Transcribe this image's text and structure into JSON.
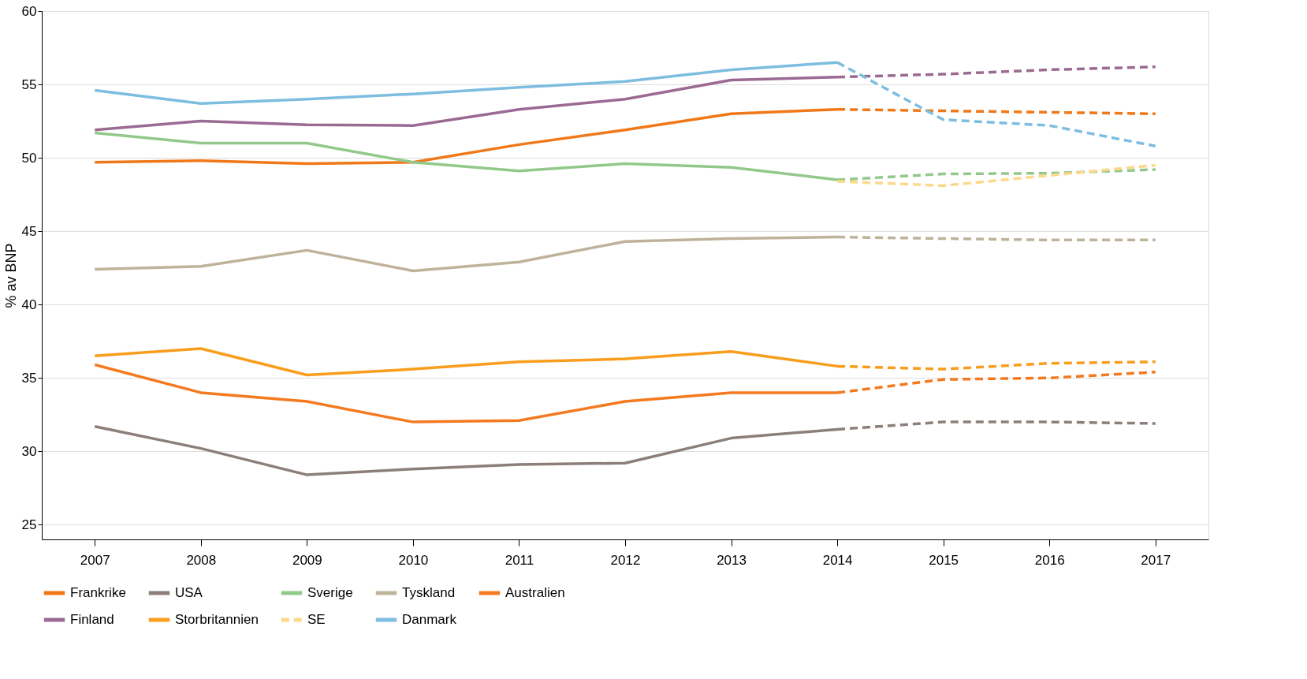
{
  "chart_data": {
    "type": "line",
    "ylabel": "% av BNP",
    "xlim": [
      2006.5,
      2017.5
    ],
    "xticks": [
      2007,
      2008,
      2009,
      2010,
      2011,
      2012,
      2013,
      2014,
      2015,
      2016,
      2017
    ],
    "ylim": [
      24,
      60
    ],
    "yticks": [
      25,
      30,
      35,
      40,
      45,
      50,
      55,
      60
    ],
    "grid": "y",
    "legend": "bottom",
    "series": [
      {
        "name": "Frankrike",
        "color": "#f07818",
        "line_style": "solid",
        "x": [
          2007,
          2008,
          2009,
          2010,
          2011,
          2012,
          2013,
          2014
        ],
        "values": [
          49.7,
          49.8,
          49.6,
          49.7,
          50.9,
          51.9,
          53.0,
          53.3
        ]
      },
      {
        "color": "#f07818",
        "line_style": "dashed",
        "x": [
          2014,
          2015,
          2016,
          2017
        ],
        "values": [
          53.3,
          53.2,
          53.1,
          53.0
        ]
      },
      {
        "name": "USA",
        "color": "#8c7f7a",
        "line_style": "solid",
        "x": [
          2007,
          2008,
          2009,
          2010,
          2011,
          2012,
          2013,
          2014
        ],
        "values": [
          31.7,
          30.2,
          28.4,
          28.8,
          29.1,
          29.2,
          30.9,
          31.5
        ]
      },
      {
        "color": "#8c7f7a",
        "line_style": "dashed",
        "x": [
          2014,
          2015,
          2016,
          2017
        ],
        "values": [
          31.5,
          32.0,
          32.0,
          31.9
        ]
      },
      {
        "name": "Sverige",
        "color": "#92c98a",
        "line_style": "solid",
        "x": [
          2007,
          2008,
          2009,
          2010,
          2011,
          2012,
          2013,
          2014
        ],
        "values": [
          51.7,
          51.0,
          51.0,
          49.7,
          49.1,
          49.6,
          49.35,
          48.5
        ]
      },
      {
        "color": "#92c98a",
        "line_style": "dashed",
        "x": [
          2014,
          2015,
          2016,
          2017
        ],
        "values": [
          48.5,
          48.9,
          48.95,
          49.2
        ]
      },
      {
        "name": "Tyskland",
        "color": "#bfb29a",
        "line_style": "solid",
        "x": [
          2007,
          2008,
          2009,
          2010,
          2011,
          2012,
          2013,
          2014
        ],
        "values": [
          42.4,
          42.6,
          43.7,
          42.3,
          42.9,
          44.3,
          44.5,
          44.6
        ]
      },
      {
        "color": "#bfb29a",
        "line_style": "dashed",
        "x": [
          2014,
          2015,
          2016,
          2017
        ],
        "values": [
          44.6,
          44.5,
          44.4,
          44.4
        ]
      },
      {
        "name": "Australien",
        "color": "#f47a20",
        "line_style": "solid",
        "x": [
          2007,
          2008,
          2009,
          2010,
          2011,
          2012,
          2013,
          2014
        ],
        "values": [
          35.9,
          34.0,
          33.4,
          32.0,
          32.1,
          33.4,
          34.0,
          34.0
        ]
      },
      {
        "color": "#f47a20",
        "line_style": "dashed",
        "x": [
          2014,
          2015,
          2016,
          2017
        ],
        "values": [
          34.0,
          34.9,
          35.0,
          35.4
        ]
      },
      {
        "name": "Finland",
        "color": "#9b6a93",
        "line_style": "solid",
        "x": [
          2007,
          2008,
          2009,
          2010,
          2011,
          2012,
          2013,
          2014
        ],
        "values": [
          51.9,
          52.5,
          52.25,
          52.2,
          53.3,
          54.0,
          55.3,
          55.5
        ]
      },
      {
        "color": "#9b6a93",
        "line_style": "dashed",
        "x": [
          2014,
          2015,
          2016,
          2017
        ],
        "values": [
          55.5,
          55.7,
          56.0,
          56.2
        ]
      },
      {
        "name": "Storbritannien",
        "color": "#f99d1c",
        "line_style": "solid",
        "x": [
          2007,
          2008,
          2009,
          2010,
          2011,
          2012,
          2013,
          2014
        ],
        "values": [
          36.5,
          37.0,
          35.2,
          35.6,
          36.1,
          36.3,
          36.8,
          35.8
        ]
      },
      {
        "color": "#f99d1c",
        "line_style": "dashed",
        "x": [
          2014,
          2015,
          2016,
          2017
        ],
        "values": [
          35.8,
          35.6,
          36.0,
          36.1
        ]
      },
      {
        "name": "SE",
        "color": "#fcd98a",
        "line_style": "dashed",
        "x": [
          2014,
          2015,
          2016,
          2017
        ],
        "values": [
          48.4,
          48.1,
          48.8,
          49.5
        ]
      },
      {
        "name": "Danmark",
        "color": "#7dbde0",
        "line_style": "solid",
        "x": [
          2007,
          2008,
          2009,
          2010,
          2011,
          2012,
          2013,
          2014
        ],
        "values": [
          54.6,
          53.7,
          54.0,
          54.35,
          54.8,
          55.2,
          56.0,
          56.5
        ]
      },
      {
        "color": "#7dbde0",
        "line_style": "dashed",
        "x": [
          2014,
          2015,
          2016,
          2017
        ],
        "values": [
          56.5,
          52.6,
          52.2,
          50.8
        ]
      }
    ]
  }
}
